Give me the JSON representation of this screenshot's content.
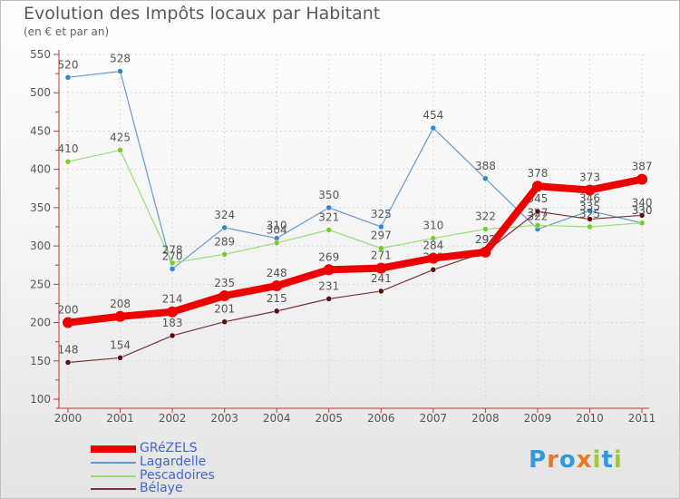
{
  "chart_data": {
    "type": "line",
    "title": "Evolution des Impôts locaux par Habitant",
    "subtitle": "(en € et par an)",
    "xlabel": "",
    "ylabel": "",
    "ylim": [
      100,
      550
    ],
    "yticks": [
      "100",
      "150",
      "200",
      "250",
      "300",
      "350",
      "400",
      "450",
      "500",
      "550"
    ],
    "categories": [
      "2000",
      "2001",
      "2002",
      "2003",
      "2004",
      "2005",
      "2006",
      "2007",
      "2008",
      "2009",
      "2010",
      "2011"
    ],
    "series": [
      {
        "name": "Lagardelle",
        "color": "#6699cc",
        "dot": "#3388cc",
        "values": [
          520,
          528,
          270,
          324,
          310,
          350,
          325,
          454,
          388,
          322,
          346,
          330
        ],
        "labels": [
          "520",
          "528",
          "270",
          "324",
          "310",
          "350",
          "325",
          "454",
          "388",
          "322",
          "346",
          "330"
        ]
      },
      {
        "name": "Pescadoires",
        "color": "#99dd77",
        "dot": "#77cc33",
        "values": [
          410,
          425,
          278,
          289,
          304,
          321,
          297,
          310,
          322,
          327,
          325,
          330
        ],
        "labels": [
          "410",
          "425",
          "278",
          "289",
          "304",
          "321",
          "297",
          "310",
          "322",
          "327",
          "325",
          "330"
        ]
      },
      {
        "name": "Bélaye",
        "color": "#773333",
        "dot": "#551111",
        "values": [
          148,
          154,
          183,
          201,
          215,
          231,
          241,
          269,
          292,
          345,
          335,
          340
        ],
        "labels": [
          "148",
          "154",
          "183",
          "201",
          "215",
          "231",
          "241",
          "269",
          "292",
          "345",
          "335",
          "340"
        ]
      },
      {
        "name": "GRéZELS",
        "color": "#ee0000",
        "dot": "#ee0000",
        "values": [
          200,
          208,
          214,
          235,
          248,
          269,
          271,
          284,
          292,
          378,
          373,
          387
        ],
        "labels": [
          "200",
          "208",
          "214",
          "235",
          "248",
          "269",
          "271",
          "284",
          "292",
          "378",
          "373",
          "387"
        ]
      }
    ]
  },
  "brand": {
    "letters": [
      "P",
      "r",
      "o",
      "x",
      "i",
      "t",
      "i"
    ],
    "colors": [
      "#3399dd",
      "#ee7722",
      "#3399dd",
      "#ee7722",
      "#99cc33",
      "#3399dd",
      "#99cc33"
    ]
  }
}
